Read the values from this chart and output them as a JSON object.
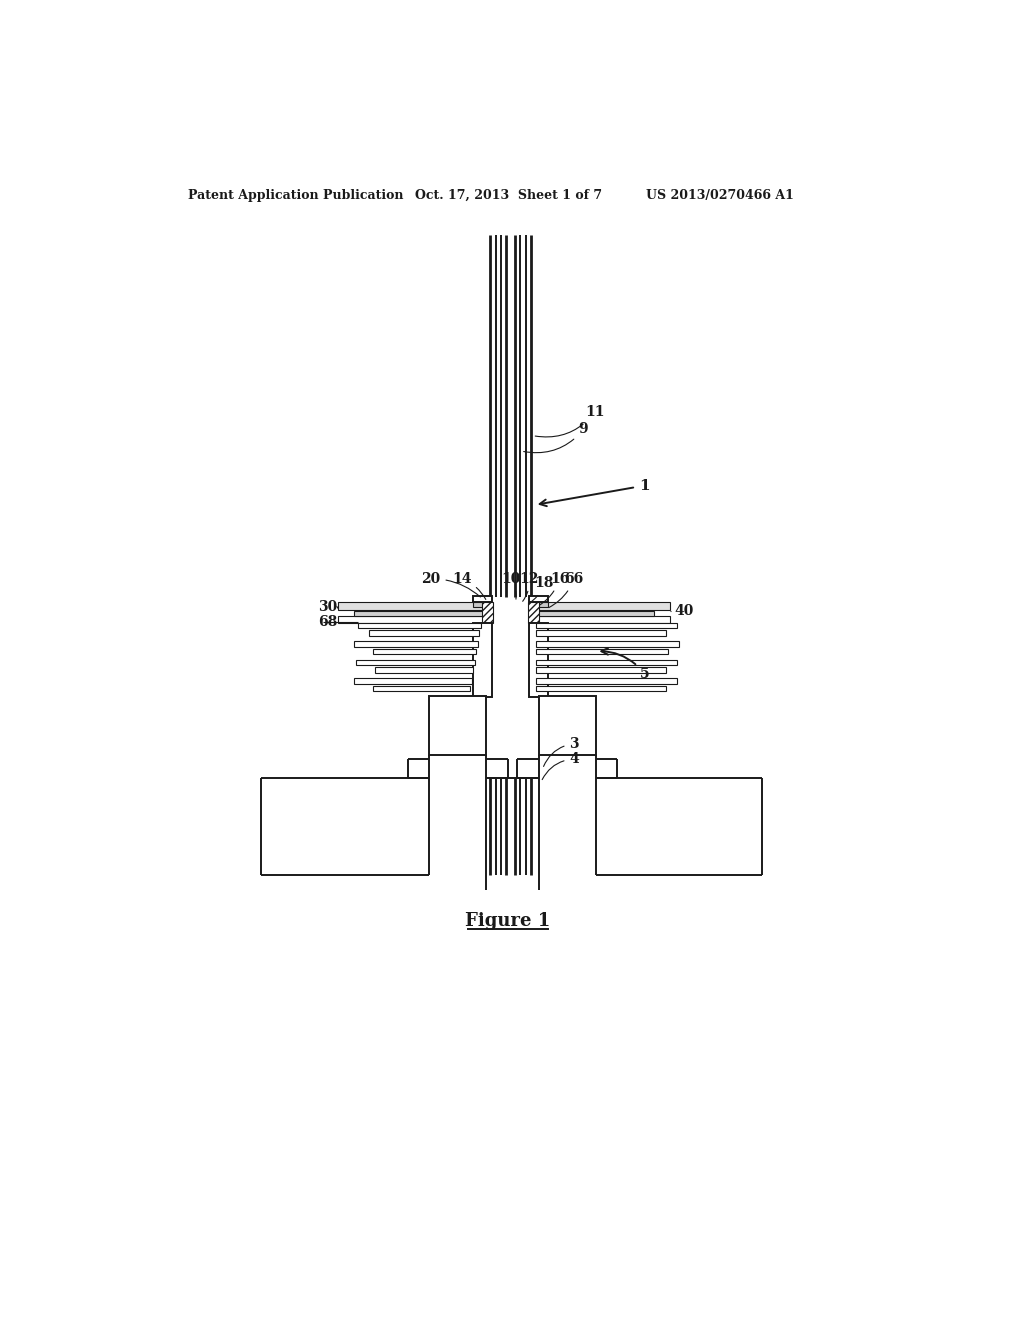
{
  "bg_color": "#ffffff",
  "header_left": "Patent Application Publication",
  "header_mid": "Oct. 17, 2013  Sheet 1 of 7",
  "header_right": "US 2013/0270466 A1",
  "figure_label": "Figure 1",
  "line_color": "#1a1a1a",
  "lw": 1.4,
  "lw_thin": 0.8,
  "lw_thick": 2.0
}
